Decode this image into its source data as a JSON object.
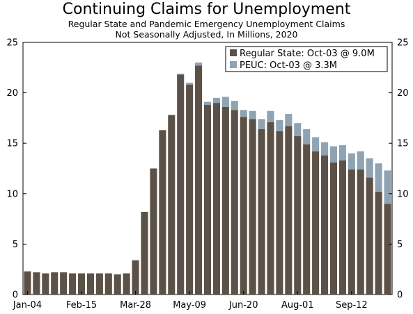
{
  "chart_data": {
    "type": "bar",
    "stacked": true,
    "title": "Continuing Claims for Unemployment",
    "subtitle": [
      "Regular State and Pandemic Emergency Unemployment Claims",
      "Not Seasonally Adjusted, In Millions, 2020"
    ],
    "ylim": [
      0,
      25
    ],
    "yticks": [
      0,
      5,
      10,
      15,
      20,
      25
    ],
    "x_tick_labels": [
      {
        "label": "Jan-04",
        "index": 0
      },
      {
        "label": "Feb-15",
        "index": 6
      },
      {
        "label": "Mar-28",
        "index": 12
      },
      {
        "label": "May-09",
        "index": 18
      },
      {
        "label": "Jun-20",
        "index": 24
      },
      {
        "label": "Aug-01",
        "index": 30
      },
      {
        "label": "Sep-12",
        "index": 36
      }
    ],
    "grid": false,
    "legend_position": "top-right",
    "series": [
      {
        "name": "Regular State: Oct-03 @ 9.0M",
        "color": "#5b5147",
        "values": [
          2.3,
          2.2,
          2.1,
          2.2,
          2.2,
          2.1,
          2.1,
          2.1,
          2.1,
          2.1,
          2.0,
          2.1,
          3.4,
          8.2,
          12.5,
          16.3,
          17.8,
          21.8,
          20.8,
          22.7,
          18.8,
          19.0,
          18.6,
          18.3,
          17.6,
          17.4,
          16.4,
          17.1,
          16.2,
          16.7,
          15.7,
          14.9,
          14.2,
          13.8,
          13.1,
          13.3,
          12.4,
          12.4,
          11.6,
          10.2,
          9.0
        ]
      },
      {
        "name": "PEUC: Oct-03 @ 3.3M",
        "color": "#8fa3b2",
        "values": [
          0,
          0,
          0,
          0,
          0,
          0,
          0,
          0,
          0,
          0,
          0,
          0,
          0,
          0,
          0,
          0,
          0,
          0.1,
          0.2,
          0.3,
          0.3,
          0.5,
          1.0,
          0.9,
          0.7,
          0.8,
          1.0,
          1.1,
          1.1,
          1.2,
          1.3,
          1.5,
          1.4,
          1.3,
          1.6,
          1.5,
          1.6,
          1.8,
          1.9,
          2.8,
          3.3
        ]
      }
    ]
  }
}
